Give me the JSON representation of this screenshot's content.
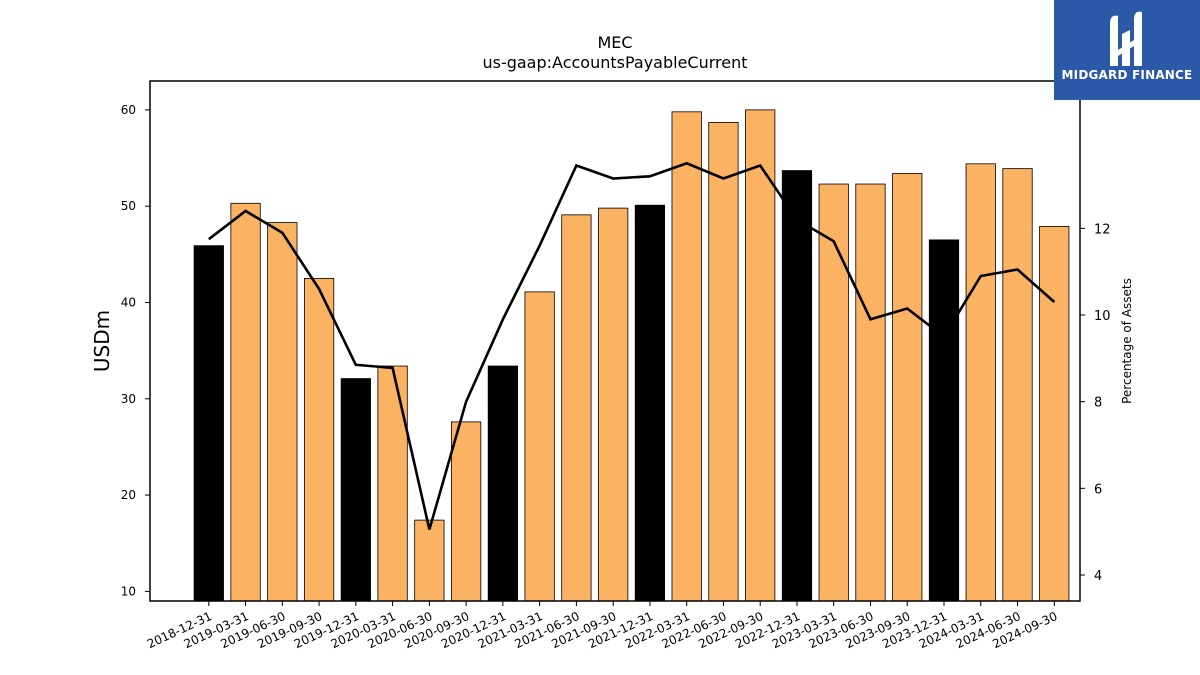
{
  "logo": {
    "brand": "MIDGARD FINANCE"
  },
  "chart_data": {
    "type": "bar",
    "title": "MEC",
    "subtitle": "us-gaap:AccountsPayableCurrent",
    "ylabel": "USDm",
    "y2label": "Percentage of Assets",
    "ylim": [
      9,
      63
    ],
    "y2lim": [
      3.4,
      15.4
    ],
    "yticks": [
      10,
      20,
      30,
      40,
      50,
      60
    ],
    "y2ticks": [
      4,
      6,
      8,
      10,
      12
    ],
    "categories": [
      "2018-12-31",
      "2019-03-31",
      "2019-06-30",
      "2019-09-30",
      "2019-12-31",
      "2020-03-31",
      "2020-06-30",
      "2020-09-30",
      "2020-12-31",
      "2021-03-31",
      "2021-06-30",
      "2021-09-30",
      "2021-12-31",
      "2022-03-31",
      "2022-06-30",
      "2022-09-30",
      "2022-12-31",
      "2023-03-31",
      "2023-06-30",
      "2023-09-30",
      "2023-12-31",
      "2024-03-31",
      "2024-06-30",
      "2024-09-30"
    ],
    "series": [
      {
        "values": [
          45.9,
          50.3,
          48.3,
          42.5,
          32.1,
          33.4,
          17.4,
          27.6,
          33.4,
          41.1,
          49.1,
          49.8,
          50.1,
          59.8,
          58.7,
          60.0,
          53.7,
          52.3,
          52.3,
          53.4,
          46.5,
          54.4,
          53.9,
          47.9
        ],
        "colors": [
          "#000000",
          "#fbb263",
          "#fbb263",
          "#fbb263",
          "#000000",
          "#fbb263",
          "#fbb263",
          "#fbb263",
          "#000000",
          "#fbb263",
          "#fbb263",
          "#fbb263",
          "#000000",
          "#fbb263",
          "#fbb263",
          "#fbb263",
          "#000000",
          "#fbb263",
          "#fbb263",
          "#fbb263",
          "#000000",
          "#fbb263",
          "#fbb263",
          "#fbb263"
        ]
      },
      {
        "type": "line",
        "axis": "right",
        "values": [
          11.75,
          12.4,
          11.9,
          10.6,
          8.85,
          8.78,
          5.05,
          8.0,
          9.9,
          11.6,
          13.45,
          13.15,
          13.2,
          13.5,
          13.15,
          13.45,
          12.2,
          11.7,
          9.9,
          10.15,
          9.5,
          10.9,
          11.05,
          10.3
        ],
        "color": "#000000"
      }
    ]
  }
}
